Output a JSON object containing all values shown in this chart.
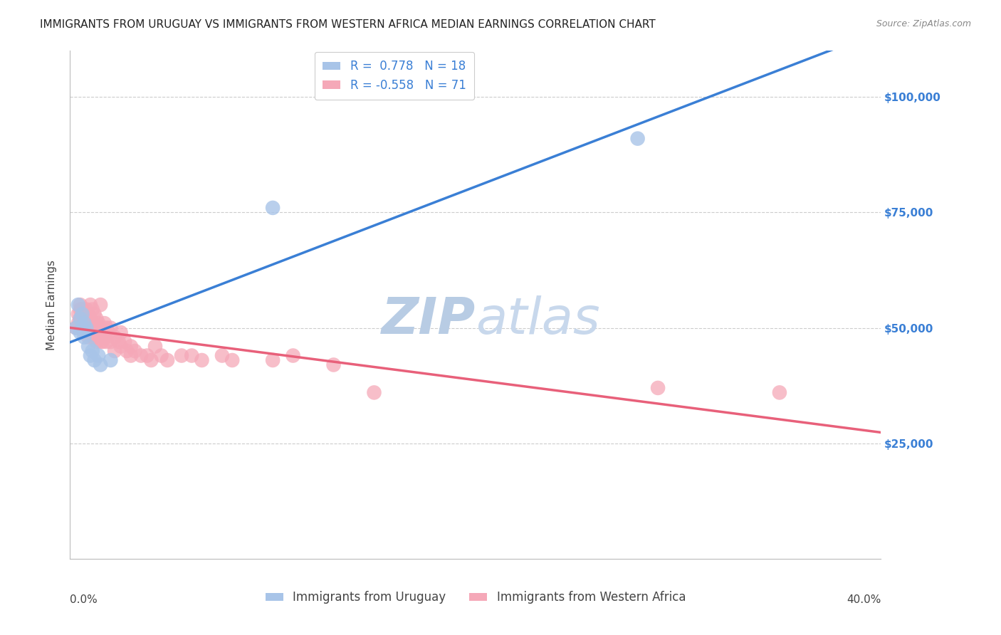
{
  "title": "IMMIGRANTS FROM URUGUAY VS IMMIGRANTS FROM WESTERN AFRICA MEDIAN EARNINGS CORRELATION CHART",
  "source": "Source: ZipAtlas.com",
  "ylabel": "Median Earnings",
  "watermark": "ZIPatlas",
  "legend": {
    "uruguay": {
      "R": 0.778,
      "N": 18,
      "color": "#a8c4e8",
      "line_color": "#3a7fd5"
    },
    "western_africa": {
      "R": -0.558,
      "N": 71,
      "color": "#f5a8b8",
      "line_color": "#e8607a"
    }
  },
  "ytick_values": [
    25000,
    50000,
    75000,
    100000
  ],
  "xlim": [
    0.0,
    0.4
  ],
  "ylim": [
    0,
    110000
  ],
  "background_color": "#ffffff",
  "grid_color": "#cccccc",
  "uruguay_points": [
    [
      0.003,
      50000
    ],
    [
      0.004,
      55000
    ],
    [
      0.005,
      52000
    ],
    [
      0.005,
      49000
    ],
    [
      0.006,
      53000
    ],
    [
      0.006,
      50000
    ],
    [
      0.007,
      51000
    ],
    [
      0.007,
      48000
    ],
    [
      0.008,
      50000
    ],
    [
      0.009,
      46000
    ],
    [
      0.01,
      44000
    ],
    [
      0.011,
      45000
    ],
    [
      0.012,
      43000
    ],
    [
      0.014,
      44000
    ],
    [
      0.015,
      42000
    ],
    [
      0.02,
      43000
    ],
    [
      0.1,
      76000
    ],
    [
      0.28,
      91000
    ]
  ],
  "western_africa_points": [
    [
      0.003,
      50000
    ],
    [
      0.004,
      53000
    ],
    [
      0.004,
      51000
    ],
    [
      0.005,
      55000
    ],
    [
      0.005,
      54000
    ],
    [
      0.005,
      52000
    ],
    [
      0.006,
      54000
    ],
    [
      0.006,
      52000
    ],
    [
      0.006,
      50000
    ],
    [
      0.007,
      53000
    ],
    [
      0.007,
      51000
    ],
    [
      0.007,
      49000
    ],
    [
      0.008,
      54000
    ],
    [
      0.008,
      52000
    ],
    [
      0.008,
      50000
    ],
    [
      0.009,
      53000
    ],
    [
      0.009,
      51000
    ],
    [
      0.009,
      48000
    ],
    [
      0.01,
      55000
    ],
    [
      0.01,
      52000
    ],
    [
      0.01,
      50000
    ],
    [
      0.011,
      54000
    ],
    [
      0.011,
      51000
    ],
    [
      0.011,
      48000
    ],
    [
      0.012,
      53000
    ],
    [
      0.012,
      50000
    ],
    [
      0.012,
      48000
    ],
    [
      0.013,
      52000
    ],
    [
      0.013,
      49000
    ],
    [
      0.013,
      47000
    ],
    [
      0.014,
      51000
    ],
    [
      0.014,
      49000
    ],
    [
      0.015,
      55000
    ],
    [
      0.015,
      50000
    ],
    [
      0.015,
      47000
    ],
    [
      0.016,
      49000
    ],
    [
      0.016,
      47000
    ],
    [
      0.017,
      51000
    ],
    [
      0.017,
      48000
    ],
    [
      0.018,
      50000
    ],
    [
      0.018,
      47000
    ],
    [
      0.019,
      49000
    ],
    [
      0.02,
      50000
    ],
    [
      0.02,
      47000
    ],
    [
      0.022,
      48000
    ],
    [
      0.022,
      45000
    ],
    [
      0.024,
      47000
    ],
    [
      0.025,
      49000
    ],
    [
      0.025,
      46000
    ],
    [
      0.027,
      47000
    ],
    [
      0.028,
      45000
    ],
    [
      0.03,
      46000
    ],
    [
      0.03,
      44000
    ],
    [
      0.032,
      45000
    ],
    [
      0.035,
      44000
    ],
    [
      0.038,
      44000
    ],
    [
      0.04,
      43000
    ],
    [
      0.042,
      46000
    ],
    [
      0.045,
      44000
    ],
    [
      0.048,
      43000
    ],
    [
      0.055,
      44000
    ],
    [
      0.06,
      44000
    ],
    [
      0.065,
      43000
    ],
    [
      0.075,
      44000
    ],
    [
      0.08,
      43000
    ],
    [
      0.1,
      43000
    ],
    [
      0.11,
      44000
    ],
    [
      0.13,
      42000
    ],
    [
      0.15,
      36000
    ],
    [
      0.29,
      37000
    ],
    [
      0.35,
      36000
    ]
  ],
  "title_fontsize": 11,
  "axis_label_fontsize": 11,
  "tick_fontsize": 11,
  "legend_fontsize": 12,
  "watermark_fontsize": 52,
  "watermark_color": "#ccd9ee",
  "right_tick_color": "#3a7fd5",
  "legend_text_color": "#3a7fd5"
}
